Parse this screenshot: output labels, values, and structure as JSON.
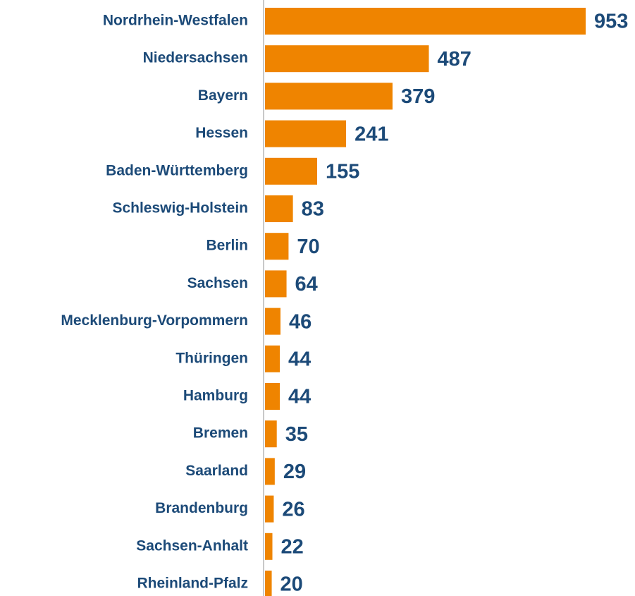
{
  "chart_data": {
    "type": "barh",
    "categories": [
      "Nordrhein-Westfalen",
      "Niedersachsen",
      "Bayern",
      "Hessen",
      "Baden-Württemberg",
      "Schleswig-Holstein",
      "Berlin",
      "Sachsen",
      "Mecklenburg-Vorpommern",
      "Thüringen",
      "Hamburg",
      "Bremen",
      "Saarland",
      "Brandenburg",
      "Sachsen-Anhalt",
      "Rheinland-Pfalz"
    ],
    "values": [
      953,
      487,
      379,
      241,
      155,
      83,
      70,
      64,
      46,
      44,
      44,
      35,
      29,
      26,
      22,
      20
    ],
    "color": "#ef8400"
  }
}
